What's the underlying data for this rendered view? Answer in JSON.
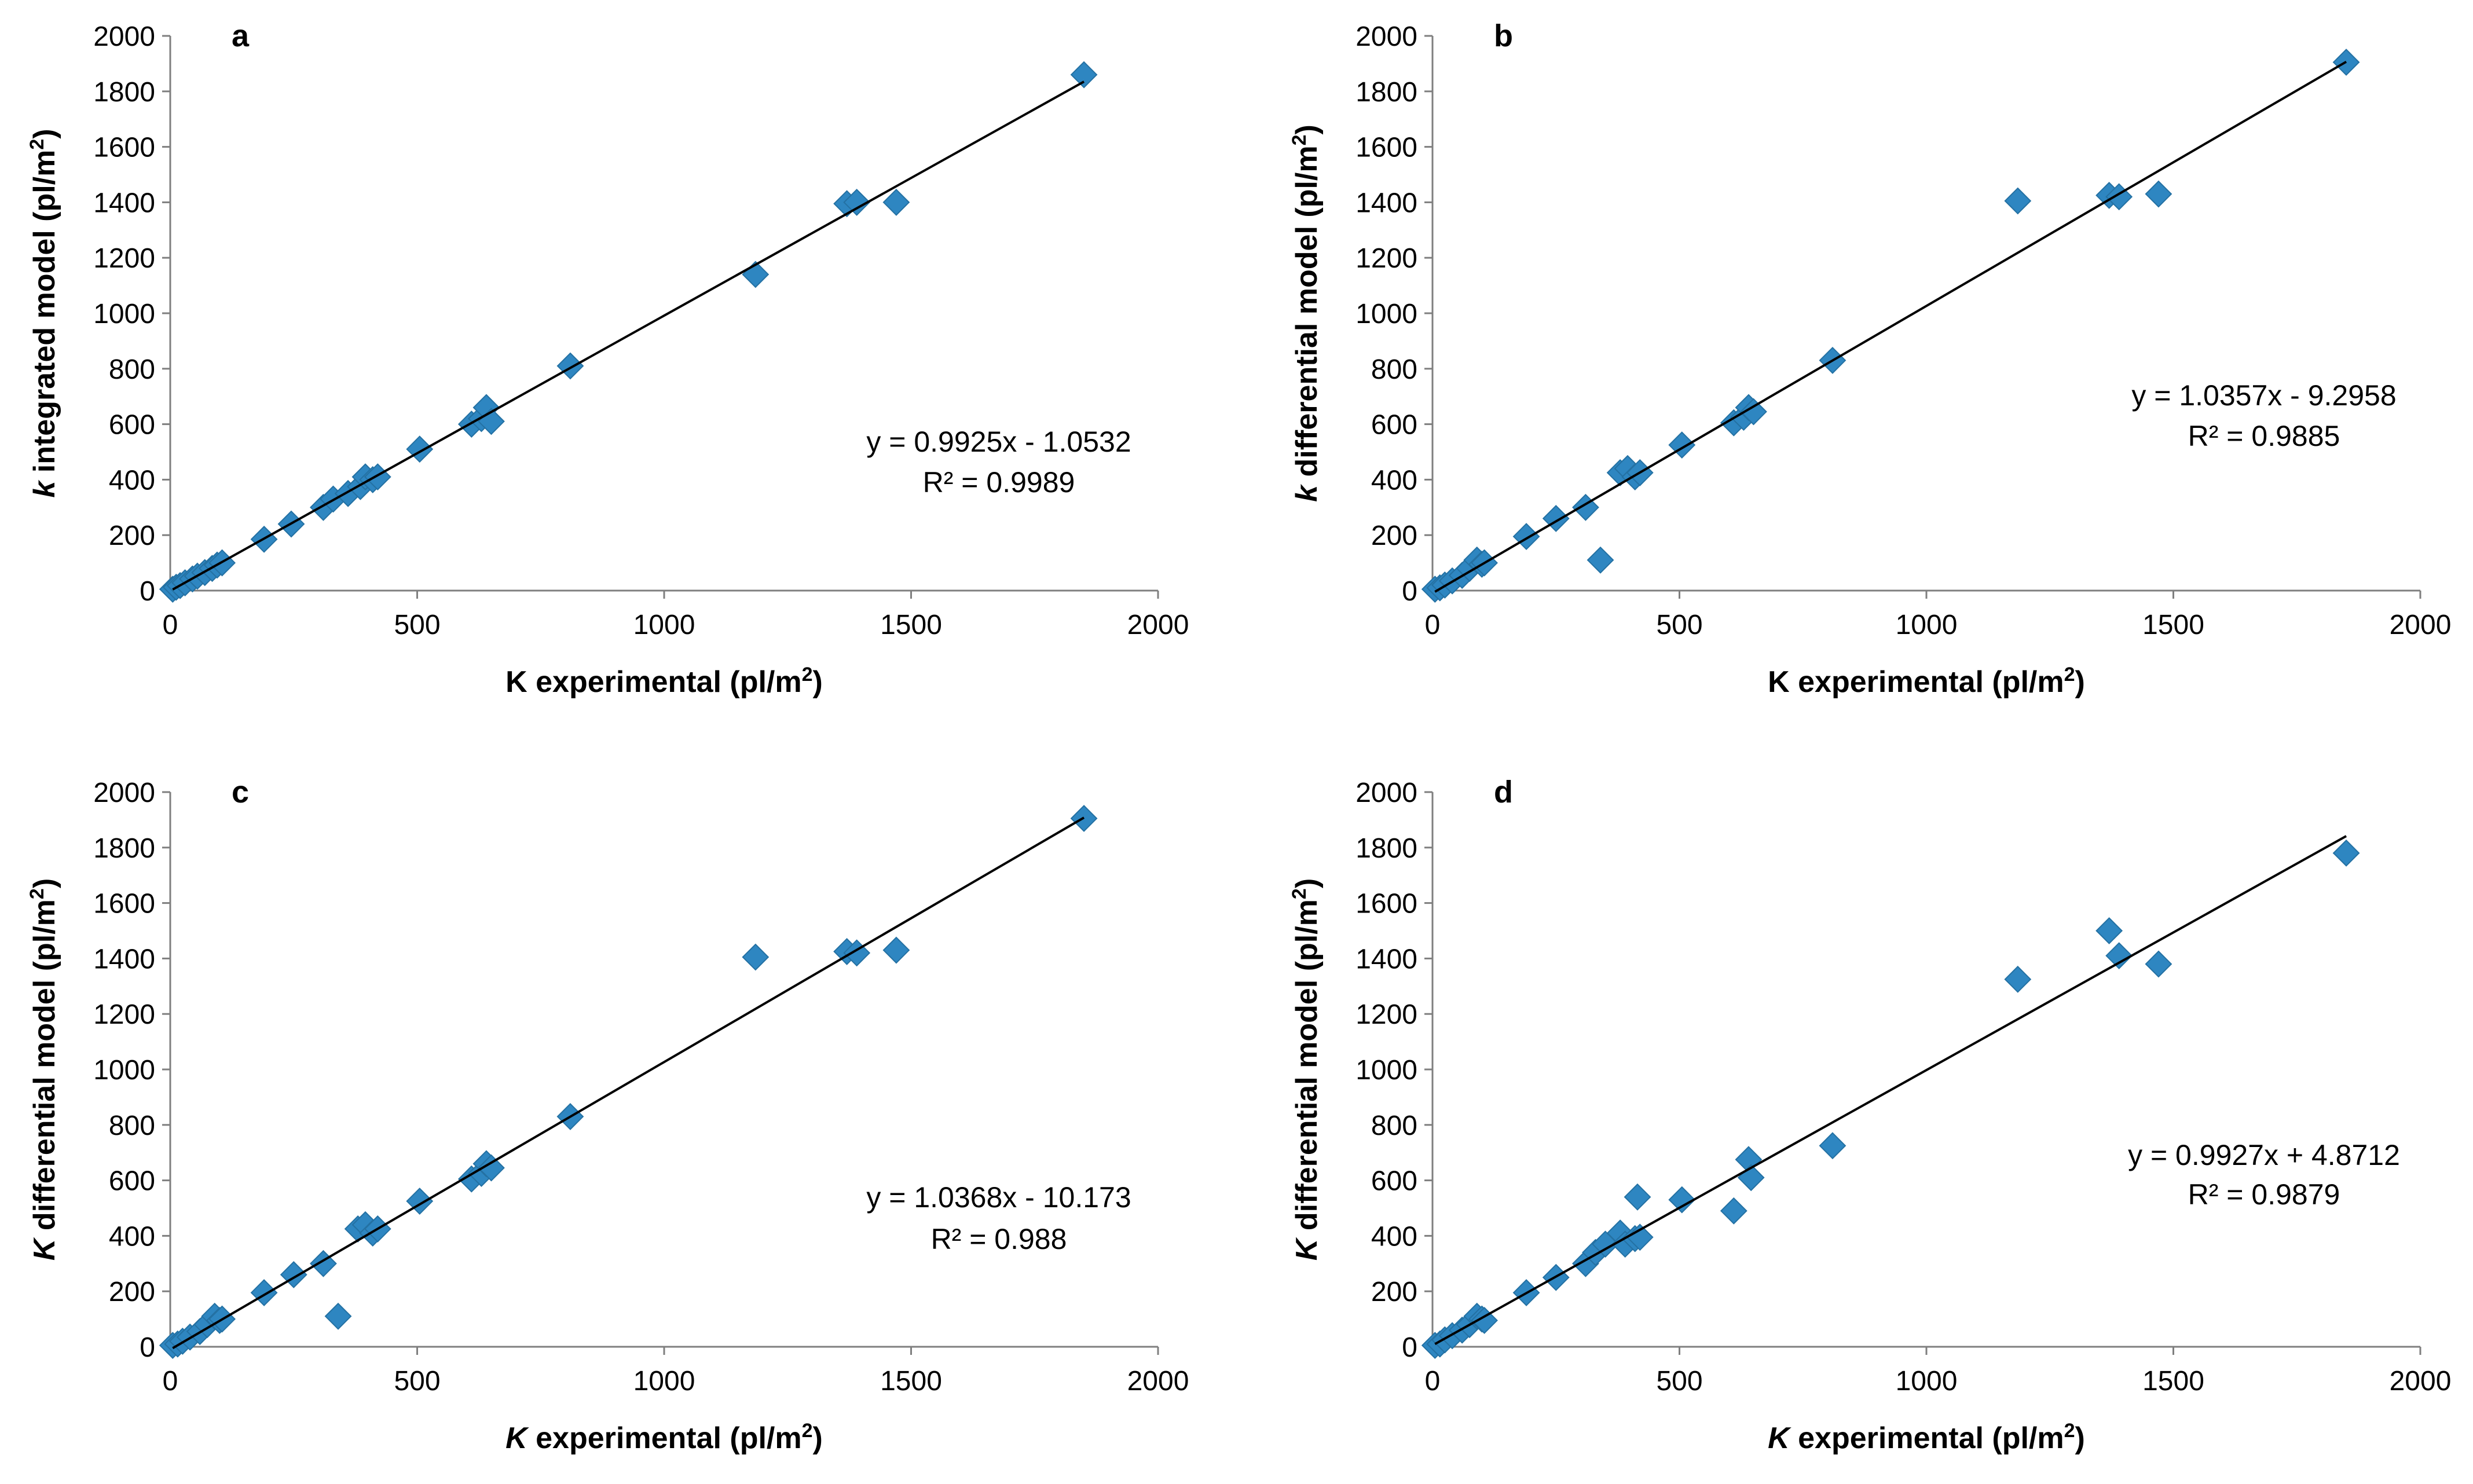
{
  "chart_data": [
    {
      "panel": "a",
      "type": "scatter",
      "xlabel": {
        "prefix": "",
        "italic": "",
        "main": "K experimental (pl/m",
        "sup": "2",
        "suffix": ")"
      },
      "ylabel": {
        "italic": "k",
        "main": " integrated model (pl/m",
        "sup": "2",
        "suffix": ")"
      },
      "xlim": [
        0,
        2000
      ],
      "ylim": [
        0,
        2000
      ],
      "xticks": [
        0,
        500,
        1000,
        1500,
        2000
      ],
      "yticks": [
        0,
        200,
        400,
        600,
        800,
        1000,
        1200,
        1400,
        1600,
        1800,
        2000
      ],
      "equation": "y = 0.9925x - 1.0532",
      "r_squared": "R² = 0.9989",
      "trendline": {
        "slope": 0.9925,
        "intercept": -1.0532,
        "x_range": [
          5,
          1850
        ]
      },
      "points": [
        [
          5,
          5
        ],
        [
          12,
          12
        ],
        [
          20,
          18
        ],
        [
          30,
          28
        ],
        [
          45,
          42
        ],
        [
          55,
          52
        ],
        [
          70,
          65
        ],
        [
          85,
          80
        ],
        [
          95,
          92
        ],
        [
          105,
          100
        ],
        [
          190,
          185
        ],
        [
          245,
          240
        ],
        [
          310,
          300
        ],
        [
          330,
          330
        ],
        [
          360,
          350
        ],
        [
          385,
          375
        ],
        [
          395,
          410
        ],
        [
          410,
          400
        ],
        [
          420,
          410
        ],
        [
          505,
          510
        ],
        [
          610,
          600
        ],
        [
          630,
          620
        ],
        [
          640,
          660
        ],
        [
          650,
          610
        ],
        [
          810,
          810
        ],
        [
          1185,
          1140
        ],
        [
          1370,
          1395
        ],
        [
          1390,
          1400
        ],
        [
          1470,
          1400
        ],
        [
          1850,
          1860
        ]
      ]
    },
    {
      "panel": "b",
      "type": "scatter",
      "xlabel": {
        "italic": "",
        "main": "K experimental (pl/m",
        "sup": "2",
        "suffix": ")"
      },
      "ylabel": {
        "italic": "k",
        "main": " differential model (pl/m",
        "sup": "2",
        "suffix": ")"
      },
      "xlim": [
        0,
        2000
      ],
      "ylim": [
        0,
        2000
      ],
      "xticks": [
        0,
        500,
        1000,
        1500,
        2000
      ],
      "yticks": [
        0,
        200,
        400,
        600,
        800,
        1000,
        1200,
        1400,
        1600,
        1800,
        2000
      ],
      "equation": "y = 1.0357x - 9.2958",
      "r_squared": "R² = 0.9885",
      "trendline": {
        "slope": 1.0357,
        "intercept": -9.2958,
        "x_range": [
          5,
          1850
        ]
      },
      "points": [
        [
          5,
          5
        ],
        [
          15,
          10
        ],
        [
          25,
          20
        ],
        [
          40,
          35
        ],
        [
          60,
          55
        ],
        [
          75,
          80
        ],
        [
          90,
          110
        ],
        [
          100,
          95
        ],
        [
          105,
          100
        ],
        [
          190,
          195
        ],
        [
          250,
          260
        ],
        [
          310,
          300
        ],
        [
          340,
          110
        ],
        [
          380,
          425
        ],
        [
          395,
          440
        ],
        [
          410,
          410
        ],
        [
          420,
          425
        ],
        [
          505,
          525
        ],
        [
          610,
          605
        ],
        [
          630,
          625
        ],
        [
          640,
          660
        ],
        [
          650,
          645
        ],
        [
          810,
          830
        ],
        [
          1185,
          1405
        ],
        [
          1370,
          1425
        ],
        [
          1390,
          1420
        ],
        [
          1470,
          1430
        ],
        [
          1850,
          1905
        ]
      ]
    },
    {
      "panel": "c",
      "type": "scatter",
      "xlabel": {
        "italic": "K",
        "main": " experimental (pl/m",
        "sup": "2",
        "suffix": ")"
      },
      "ylabel": {
        "italic": "K",
        "main": " differential model (pl/m",
        "sup": "2",
        "suffix": ")"
      },
      "xlim": [
        0,
        2000
      ],
      "ylim": [
        0,
        2000
      ],
      "xticks": [
        0,
        500,
        1000,
        1500,
        2000
      ],
      "yticks": [
        0,
        200,
        400,
        600,
        800,
        1000,
        1200,
        1400,
        1600,
        1800,
        2000
      ],
      "equation": "y = 1.0368x - 10.173",
      "r_squared": "R² = 0.988",
      "trendline": {
        "slope": 1.0368,
        "intercept": -10.173,
        "x_range": [
          5,
          1850
        ]
      },
      "points": [
        [
          5,
          5
        ],
        [
          15,
          10
        ],
        [
          25,
          20
        ],
        [
          40,
          35
        ],
        [
          60,
          55
        ],
        [
          75,
          80
        ],
        [
          90,
          110
        ],
        [
          100,
          95
        ],
        [
          105,
          100
        ],
        [
          190,
          195
        ],
        [
          250,
          260
        ],
        [
          310,
          300
        ],
        [
          340,
          110
        ],
        [
          380,
          425
        ],
        [
          395,
          440
        ],
        [
          410,
          410
        ],
        [
          420,
          425
        ],
        [
          505,
          525
        ],
        [
          610,
          605
        ],
        [
          630,
          625
        ],
        [
          640,
          660
        ],
        [
          650,
          645
        ],
        [
          810,
          830
        ],
        [
          1185,
          1405
        ],
        [
          1370,
          1425
        ],
        [
          1390,
          1420
        ],
        [
          1470,
          1430
        ],
        [
          1850,
          1905
        ]
      ]
    },
    {
      "panel": "d",
      "type": "scatter",
      "xlabel": {
        "italic": "K",
        "main": " experimental (pl/m",
        "sup": "2",
        "suffix": ")"
      },
      "ylabel": {
        "italic": "K",
        "main": " differential model (pl/m",
        "sup": "2",
        "suffix": ")"
      },
      "xlim": [
        0,
        2000
      ],
      "ylim": [
        0,
        2000
      ],
      "xticks": [
        0,
        500,
        1000,
        1500,
        2000
      ],
      "yticks": [
        0,
        200,
        400,
        600,
        800,
        1000,
        1200,
        1400,
        1600,
        1800,
        2000
      ],
      "equation": "y = 0.9927x + 4.8712",
      "r_squared": "R² = 0.9879",
      "trendline": {
        "slope": 0.9927,
        "intercept": 4.8712,
        "x_range": [
          5,
          1850
        ]
      },
      "points": [
        [
          5,
          5
        ],
        [
          15,
          10
        ],
        [
          25,
          25
        ],
        [
          40,
          40
        ],
        [
          60,
          60
        ],
        [
          75,
          80
        ],
        [
          90,
          110
        ],
        [
          100,
          100
        ],
        [
          105,
          95
        ],
        [
          190,
          195
        ],
        [
          250,
          250
        ],
        [
          310,
          300
        ],
        [
          330,
          340
        ],
        [
          350,
          370
        ],
        [
          380,
          410
        ],
        [
          390,
          370
        ],
        [
          410,
          390
        ],
        [
          415,
          540
        ],
        [
          420,
          395
        ],
        [
          505,
          530
        ],
        [
          610,
          490
        ],
        [
          640,
          675
        ],
        [
          645,
          610
        ],
        [
          810,
          725
        ],
        [
          1185,
          1325
        ],
        [
          1370,
          1500
        ],
        [
          1390,
          1410
        ],
        [
          1470,
          1380
        ],
        [
          1850,
          1780
        ]
      ]
    }
  ],
  "colors": {
    "marker": "#2E86C1",
    "marker_stroke": "#2471A3",
    "trendline": "#000000",
    "axis": "#7F7F7F"
  }
}
